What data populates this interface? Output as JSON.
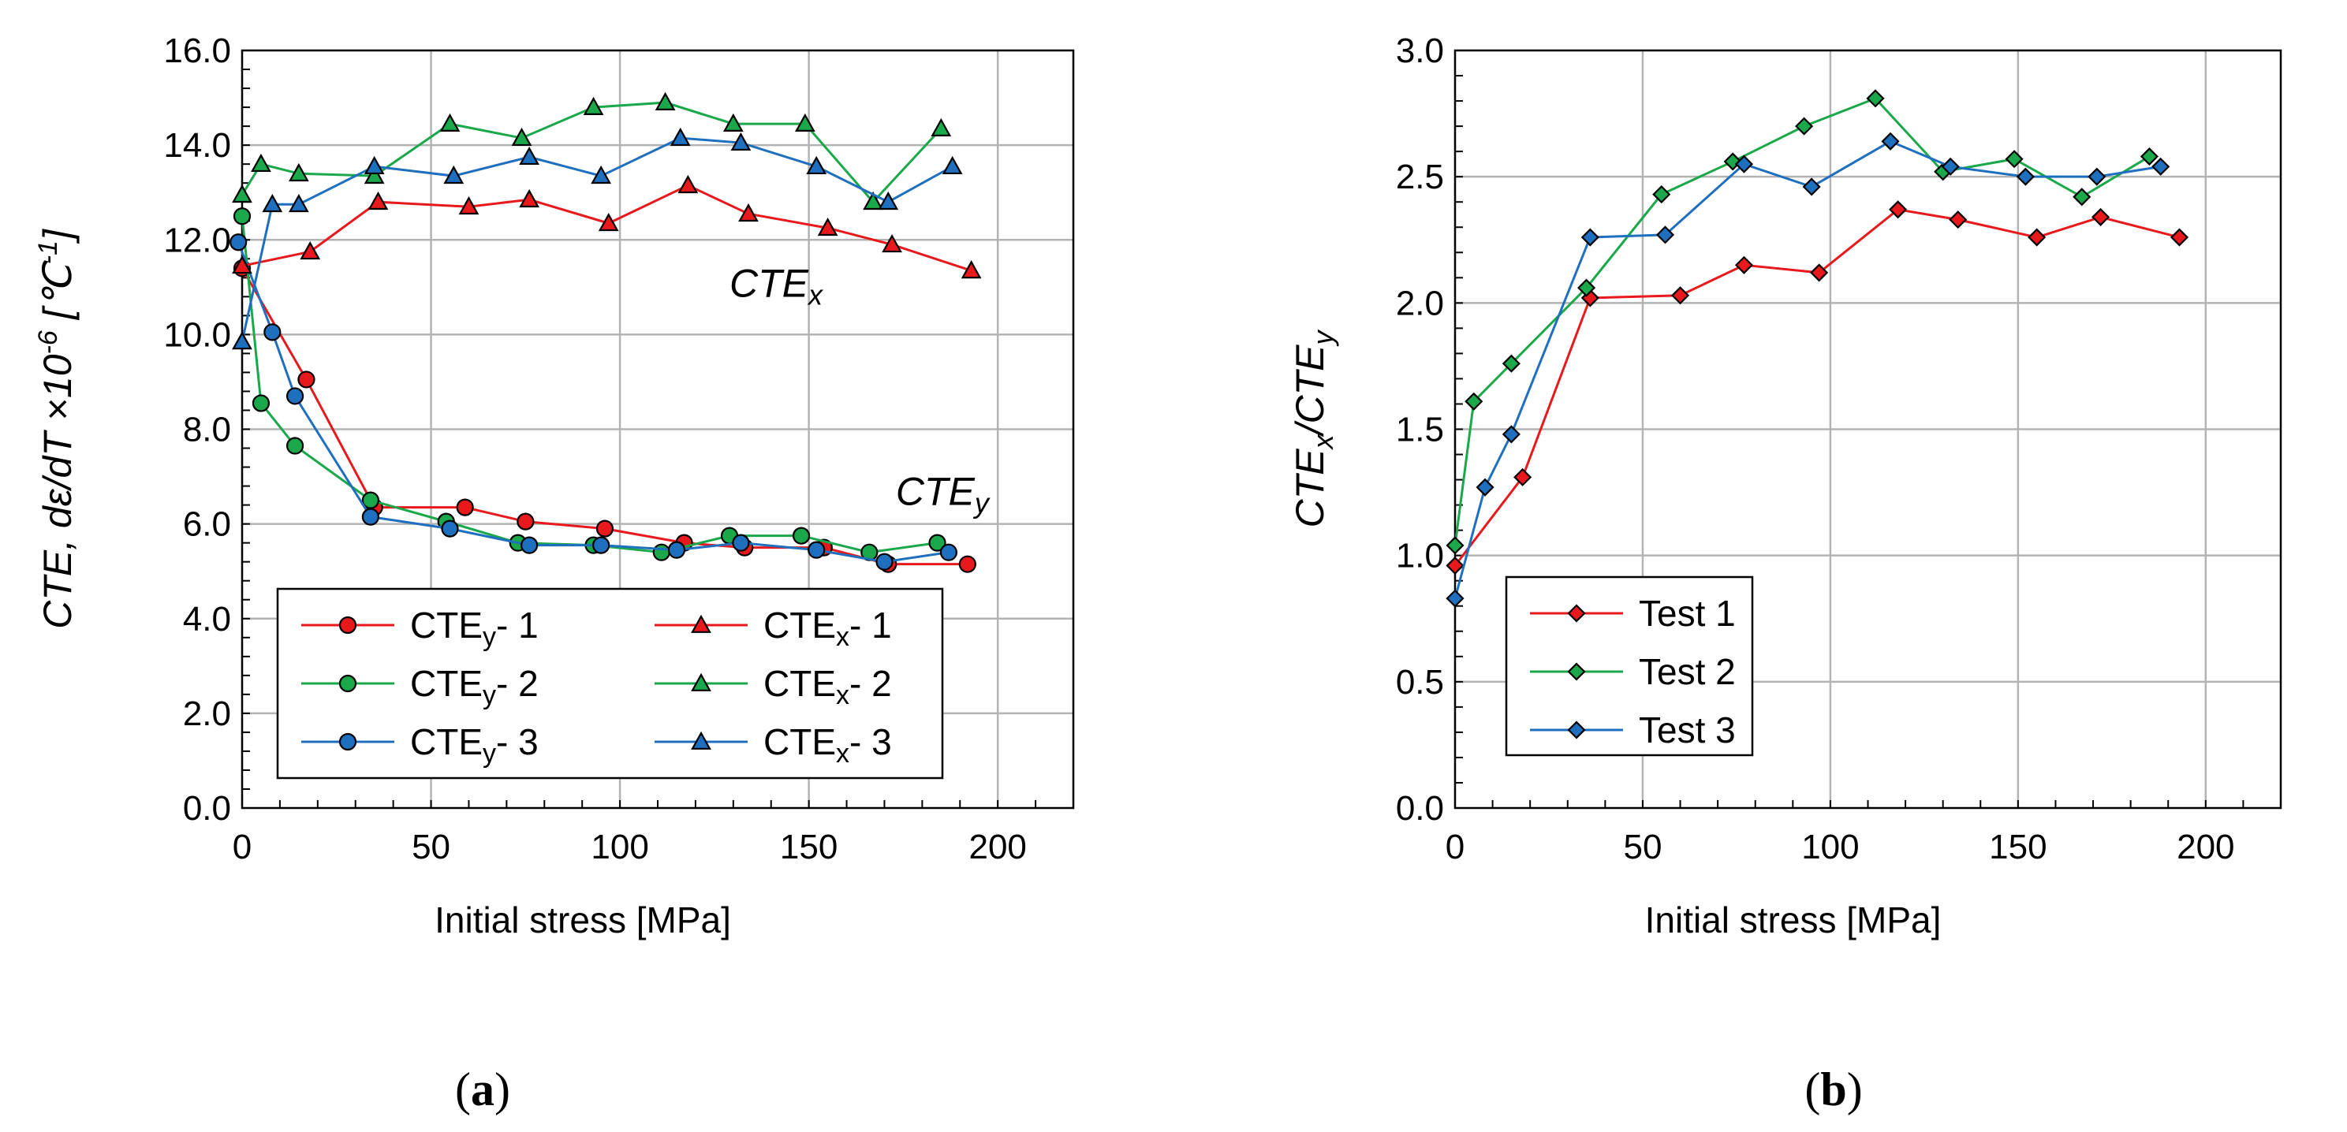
{
  "chart_data": [
    {
      "id": "a",
      "type": "line",
      "panel_label": "a",
      "xlabel": "Initial stress  [MPa]",
      "ylabel": "CTE, dε/dT  ×10-6 [℃-1]",
      "xlim": [
        0,
        220
      ],
      "ylim": [
        0,
        16
      ],
      "xticks": [
        0,
        50,
        100,
        150,
        200
      ],
      "xtick_labels": [
        "0",
        "50",
        "100",
        "150",
        "200"
      ],
      "yticks": [
        0,
        2,
        4,
        6,
        8,
        10,
        12,
        14,
        16
      ],
      "ytick_labels": [
        "0.0",
        "2.0",
        "4.0",
        "6.0",
        "8.0",
        "10.0",
        "12.0",
        "14.0",
        "16.0"
      ],
      "grid": true,
      "legend_position": "bottom-left",
      "annotations": [
        {
          "base": "CTE",
          "sub": "x",
          "x": 129,
          "y": 10.8
        },
        {
          "base": "CTE",
          "sub": "y",
          "x": 173,
          "y": 6.4
        }
      ],
      "series": [
        {
          "name": "CTE",
          "sub": "y",
          "suffix": "- 1",
          "color": "#e8191c",
          "marker": "circle",
          "x": [
            0,
            17,
            35,
            59,
            75,
            96,
            117,
            133,
            154,
            171,
            192
          ],
          "y": [
            11.4,
            9.05,
            6.35,
            6.35,
            6.05,
            5.9,
            5.6,
            5.5,
            5.5,
            5.15,
            5.15
          ]
        },
        {
          "name": "CTE",
          "sub": "y",
          "suffix": "- 2",
          "color": "#1aa84a",
          "marker": "circle",
          "x": [
            0,
            5,
            14,
            34,
            54,
            73,
            93,
            111,
            129,
            148,
            166,
            184
          ],
          "y": [
            12.5,
            8.55,
            7.65,
            6.5,
            6.05,
            5.6,
            5.55,
            5.4,
            5.75,
            5.75,
            5.4,
            5.6
          ]
        },
        {
          "name": "CTE",
          "sub": "y",
          "suffix": "- 3",
          "color": "#1f6fbf",
          "marker": "circle",
          "x": [
            -1,
            8,
            14,
            34,
            55,
            76,
            95,
            115,
            132,
            152,
            170,
            187
          ],
          "y": [
            11.95,
            10.05,
            8.7,
            6.15,
            5.9,
            5.55,
            5.55,
            5.45,
            5.6,
            5.45,
            5.2,
            5.4
          ]
        },
        {
          "name": "CTE",
          "sub": "x",
          "suffix": "- 1",
          "color": "#e8191c",
          "marker": "triangle",
          "x": [
            0,
            18,
            36,
            60,
            76,
            97,
            118,
            134,
            155,
            172,
            193
          ],
          "y": [
            11.45,
            11.75,
            12.8,
            12.7,
            12.85,
            12.35,
            13.15,
            12.55,
            12.25,
            11.9,
            11.35
          ]
        },
        {
          "name": "CTE",
          "sub": "x",
          "suffix": "- 2",
          "color": "#1aa84a",
          "marker": "triangle",
          "x": [
            0,
            5,
            15,
            35,
            55,
            74,
            93,
            112,
            130,
            149,
            167,
            185
          ],
          "y": [
            12.95,
            13.6,
            13.4,
            13.35,
            14.45,
            14.15,
            14.8,
            14.9,
            14.45,
            14.45,
            12.8,
            14.35
          ]
        },
        {
          "name": "CTE",
          "sub": "x",
          "suffix": "- 3",
          "color": "#1f6fbf",
          "marker": "triangle",
          "x": [
            0,
            8,
            15,
            35,
            56,
            76,
            95,
            116,
            132,
            152,
            171,
            188
          ],
          "y": [
            9.85,
            12.75,
            12.75,
            13.55,
            13.35,
            13.75,
            13.35,
            14.15,
            14.05,
            13.55,
            12.8,
            13.55
          ]
        }
      ]
    },
    {
      "id": "b",
      "type": "line",
      "panel_label": "b",
      "xlabel": "Initial stress  [MPa]",
      "ylabel": "CTEx/CTEy",
      "xlim": [
        0,
        220
      ],
      "ylim": [
        0,
        3
      ],
      "xticks": [
        0,
        50,
        100,
        150,
        200
      ],
      "xtick_labels": [
        "0",
        "50",
        "100",
        "150",
        "200"
      ],
      "yticks": [
        0,
        0.5,
        1,
        1.5,
        2,
        2.5,
        3
      ],
      "ytick_labels": [
        "0.0",
        "0.5",
        "1.0",
        "1.5",
        "2.0",
        "2.5",
        "3.0"
      ],
      "grid": true,
      "legend_position": "bottom-left",
      "series": [
        {
          "name": "Test 1",
          "color": "#e8191c",
          "marker": "diamond",
          "x": [
            0,
            18,
            36,
            60,
            77,
            97,
            118,
            134,
            155,
            172,
            193
          ],
          "y": [
            0.96,
            1.31,
            2.02,
            2.03,
            2.15,
            2.12,
            2.37,
            2.33,
            2.26,
            2.34,
            2.26
          ]
        },
        {
          "name": "Test 2",
          "color": "#1aa84a",
          "marker": "diamond",
          "x": [
            0,
            5,
            15,
            35,
            55,
            74,
            93,
            112,
            130,
            149,
            167,
            185
          ],
          "y": [
            1.04,
            1.61,
            1.76,
            2.06,
            2.43,
            2.56,
            2.7,
            2.81,
            2.52,
            2.57,
            2.42,
            2.58
          ]
        },
        {
          "name": "Test 3",
          "color": "#1f6fbf",
          "marker": "diamond",
          "x": [
            0,
            8,
            15,
            36,
            56,
            77,
            95,
            116,
            132,
            152,
            171,
            188
          ],
          "y": [
            0.83,
            1.27,
            1.48,
            2.26,
            2.27,
            2.55,
            2.46,
            2.64,
            2.54,
            2.5,
            2.5,
            2.54
          ]
        }
      ]
    }
  ]
}
